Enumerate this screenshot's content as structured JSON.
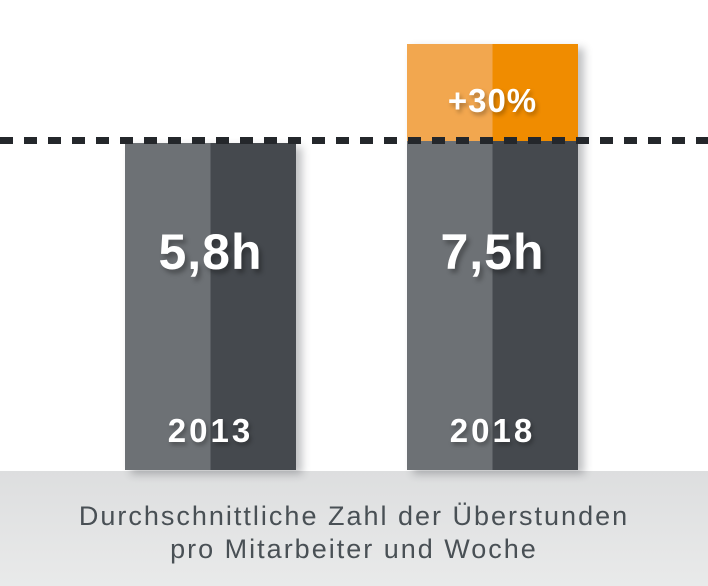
{
  "palette": {
    "background": "#ffffff",
    "bar_light": "#6d7175",
    "bar_dark": "#45494e",
    "accent_light": "#f2a74f",
    "accent_dark": "#f08c00",
    "dash": "#24272b",
    "label_text": "#ffffff",
    "caption_bg_top": "#dddedf",
    "caption_bg_bottom": "#e9eaea",
    "caption_text": "#495055"
  },
  "chart": {
    "bars": [
      {
        "year": "2013",
        "value_label": "5,8h"
      },
      {
        "year": "2018",
        "value_label": "7,5h",
        "delta_label": "+30%"
      }
    ]
  },
  "caption": {
    "line1": "Durchschnittliche Zahl der Überstunden",
    "line2": "pro Mitarbeiter und Woche"
  },
  "chart_data": {
    "type": "bar",
    "categories": [
      "2013",
      "2018"
    ],
    "series": [
      {
        "name": "Überstunden pro Mitarbeiter und Woche (h)",
        "values": [
          5.8,
          7.5
        ]
      }
    ],
    "annotations": [
      {
        "category": "2018",
        "label": "+30%",
        "meaning": "Zuwachs gegenüber 2013, als oranges Segment oberhalb der gestrichelten Linie dargestellt"
      }
    ],
    "reference_line": {
      "value": 5.8,
      "style": "dashed",
      "color": "#24272b"
    },
    "title": "Durchschnittliche Zahl der Überstunden pro Mitarbeiter und Woche",
    "xlabel": "",
    "ylabel": "",
    "ylim": [
      0,
      7.5
    ],
    "grid": false,
    "legend": false,
    "bar_style": "two-tone (left half lighter, right half darker)",
    "value_labels_inside_bars": [
      "5,8h",
      "7,5h"
    ],
    "orientation": "vertical"
  }
}
